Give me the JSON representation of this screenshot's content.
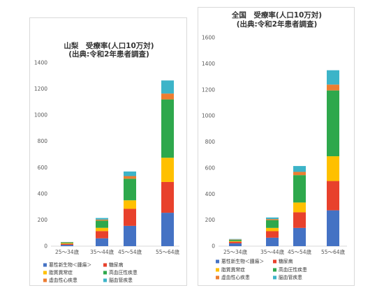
{
  "charts": [
    {
      "title_lines": [
        "山梨　受療率(人口10万対)",
        "(出典:令和2年患者調査)"
      ],
      "chart_data": {
        "type": "bar",
        "stacked": true,
        "categories": [
          "25～34歳",
          "35～44歳",
          "45～54歳",
          "55～64歳"
        ],
        "ylim": [
          0,
          1400
        ],
        "yticks": [
          0,
          200,
          400,
          600,
          800,
          1000,
          1200,
          1400
        ],
        "grid": false,
        "legend_position": "bottom",
        "series": [
          {
            "name": "悪性新生物＜腫瘍＞",
            "color": "#4472C4",
            "values": [
              10,
              60,
              155,
              255
            ]
          },
          {
            "name": "糖尿病",
            "color": "#E8412C",
            "values": [
              8,
              55,
              130,
              235
            ]
          },
          {
            "name": "脂質異常症",
            "color": "#FFC000",
            "values": [
              5,
              25,
              65,
              185
            ]
          },
          {
            "name": "高血圧性疾患",
            "color": "#2EA84C",
            "values": [
              6,
              55,
              165,
              445
            ]
          },
          {
            "name": "虚血性心疾患",
            "color": "#ED7D31",
            "values": [
              2,
              8,
              20,
              45
            ]
          },
          {
            "name": "脳血管疾患",
            "color": "#3CB4C8",
            "values": [
              1,
              12,
              35,
              100
            ]
          }
        ]
      }
    },
    {
      "title_lines": [
        "全国　受療率(人口10万対)",
        "(出典:令和2年患者調査)"
      ],
      "chart_data": {
        "type": "bar",
        "stacked": true,
        "categories": [
          "25～34歳",
          "35～44歳",
          "45～54歳",
          "55～64歳"
        ],
        "ylim": [
          0,
          1600
        ],
        "yticks": [
          0,
          200,
          400,
          600,
          800,
          1000,
          1200,
          1400,
          1600
        ],
        "grid": false,
        "legend_position": "bottom",
        "series": [
          {
            "name": "悪性新生物＜腫瘍＞",
            "color": "#4472C4",
            "values": [
              22,
              65,
              140,
              275
            ]
          },
          {
            "name": "糖尿病",
            "color": "#E8412C",
            "values": [
              12,
              50,
              120,
              225
            ]
          },
          {
            "name": "脂質異常症",
            "color": "#FFC000",
            "values": [
              5,
              25,
              75,
              190
            ]
          },
          {
            "name": "高血圧性疾患",
            "color": "#2EA84C",
            "values": [
              10,
              60,
              210,
              505
            ]
          },
          {
            "name": "虚血性心疾患",
            "color": "#ED7D31",
            "values": [
              3,
              8,
              25,
              45
            ]
          },
          {
            "name": "脳血管疾患",
            "color": "#3CB4C8",
            "values": [
              3,
              12,
              45,
              110
            ]
          }
        ]
      }
    }
  ]
}
